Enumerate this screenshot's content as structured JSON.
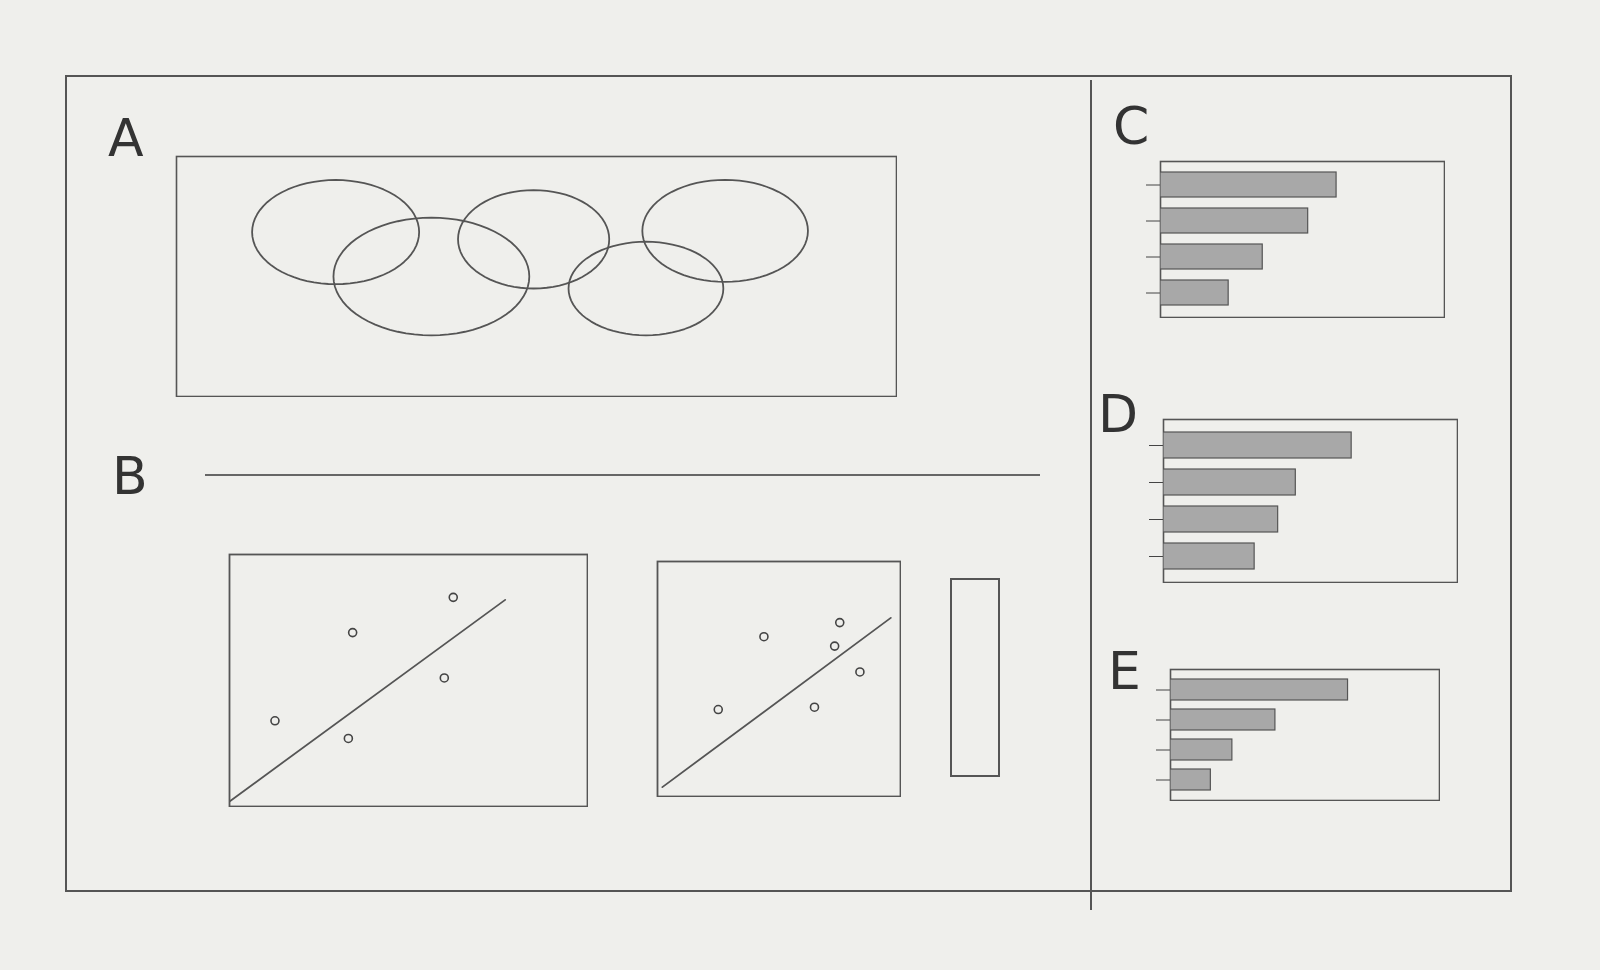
{
  "chart_data": [
    {
      "type": "ellipse",
      "title": "A",
      "x": [
        22.1,
        35.4,
        49.6,
        65.2,
        76.2
      ],
      "y": [
        68.5,
        50,
        65.5,
        45,
        69
      ],
      "width": [
        23.2,
        27.2,
        21,
        21.5,
        23
      ],
      "height": [
        43.4,
        49,
        41,
        39,
        42.5
      ],
      "xlim": [
        0,
        100
      ],
      "ylim": [
        0,
        100
      ],
      "xticks": [],
      "yticks": [],
      "tick_labels": false,
      "color": "#555555"
    },
    {
      "type": "scatter",
      "title": "B",
      "series": [
        {
          "type": "scatter",
          "x": [
            34.4,
            62.5,
            60,
            33.2,
            12.7
          ],
          "values": [
            69,
            83,
            51,
            27,
            34
          ],
          "marker": "circle",
          "color": "#444444"
        },
        {
          "type": "line",
          "x": [
            0,
            77
          ],
          "values": [
            2,
            82
          ],
          "line_style": "solid",
          "color": "#555555"
        }
      ],
      "xlim": [
        0,
        100
      ],
      "ylim": [
        0,
        100
      ],
      "xticks": [],
      "yticks": [],
      "tick_labels": false
    },
    {
      "type": "scatter",
      "series": [
        {
          "type": "scatter",
          "x": [
            43.8,
            75,
            83.3,
            25,
            64.6,
            72.9
          ],
          "values": [
            68,
            74,
            53,
            37,
            38,
            64
          ],
          "marker": "circle",
          "color": "#444444"
        },
        {
          "type": "line",
          "x": [
            2,
            96
          ],
          "values": [
            4,
            76
          ],
          "line_style": "solid",
          "color": "#555555"
        }
      ],
      "xlim": [
        0,
        100
      ],
      "ylim": [
        0,
        100
      ],
      "xticks": [],
      "yticks": [],
      "tick_labels": false
    },
    {
      "type": "bar",
      "title": "C",
      "orientation": "horizontal",
      "categories": [
        null,
        null,
        null,
        null
      ],
      "values": [
        62,
        52,
        36,
        24
      ],
      "xlim": [
        0,
        100
      ],
      "xticks": [],
      "tick_labels": false,
      "color": "#a8a8a8"
    },
    {
      "type": "bar",
      "title": "D",
      "orientation": "horizontal",
      "categories": [
        null,
        null,
        null,
        null
      ],
      "values": [
        64,
        45,
        39,
        31
      ],
      "xlim": [
        0,
        100
      ],
      "xticks": [],
      "tick_labels": false,
      "color": "#a8a8a8"
    },
    {
      "type": "bar",
      "title": "E",
      "orientation": "horizontal",
      "categories": [
        null,
        null,
        null,
        null
      ],
      "values": [
        66,
        39,
        23,
        15
      ],
      "xlim": [
        0,
        100
      ],
      "xticks": [],
      "tick_labels": false,
      "color": "#a8a8a8"
    }
  ]
}
